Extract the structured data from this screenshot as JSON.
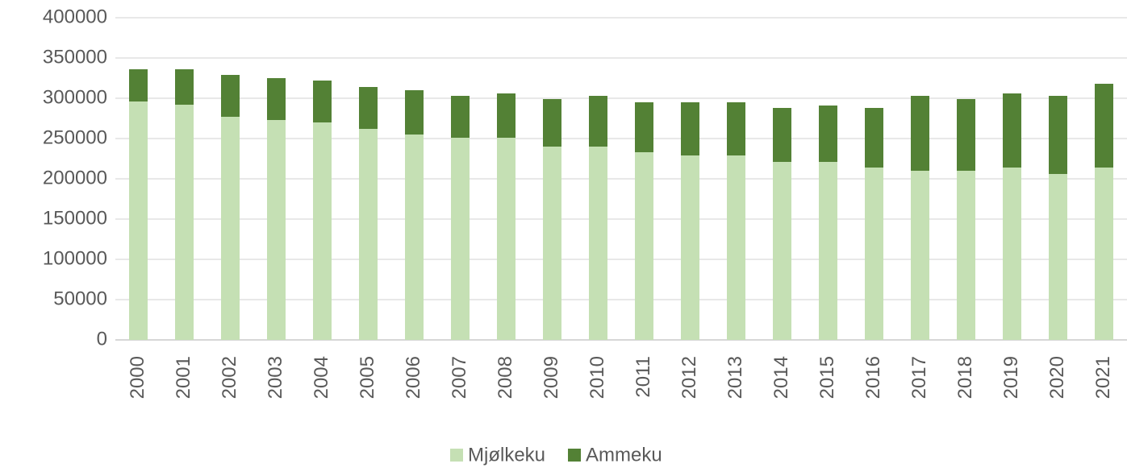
{
  "chart_data": {
    "type": "bar",
    "stacked": true,
    "categories": [
      "2000",
      "2001",
      "2002",
      "2003",
      "2004",
      "2005",
      "2006",
      "2007",
      "2008",
      "2009",
      "2010",
      "2011",
      "2012",
      "2013",
      "2014",
      "2015",
      "2016",
      "2017",
      "2018",
      "2019",
      "2020",
      "2021"
    ],
    "series": [
      {
        "name": "Mjølkeku",
        "color": "#c5e0b4",
        "values": [
          296000,
          292000,
          277000,
          273000,
          270000,
          262000,
          255000,
          251000,
          251000,
          240000,
          240000,
          233000,
          229000,
          229000,
          221000,
          221000,
          214000,
          210000,
          210000,
          214000,
          206000,
          214000
        ]
      },
      {
        "name": "Ammeku",
        "color": "#538135",
        "values": [
          40000,
          44000,
          52000,
          52000,
          52000,
          52000,
          55000,
          52000,
          55000,
          59000,
          63000,
          62000,
          66000,
          66000,
          67000,
          70000,
          74000,
          93000,
          89000,
          92000,
          97000,
          104000
        ]
      }
    ],
    "ylim": [
      0,
      400000
    ],
    "yticks": [
      0,
      50000,
      100000,
      150000,
      200000,
      250000,
      300000,
      350000,
      400000
    ],
    "grid": true,
    "legend": "bottom"
  }
}
